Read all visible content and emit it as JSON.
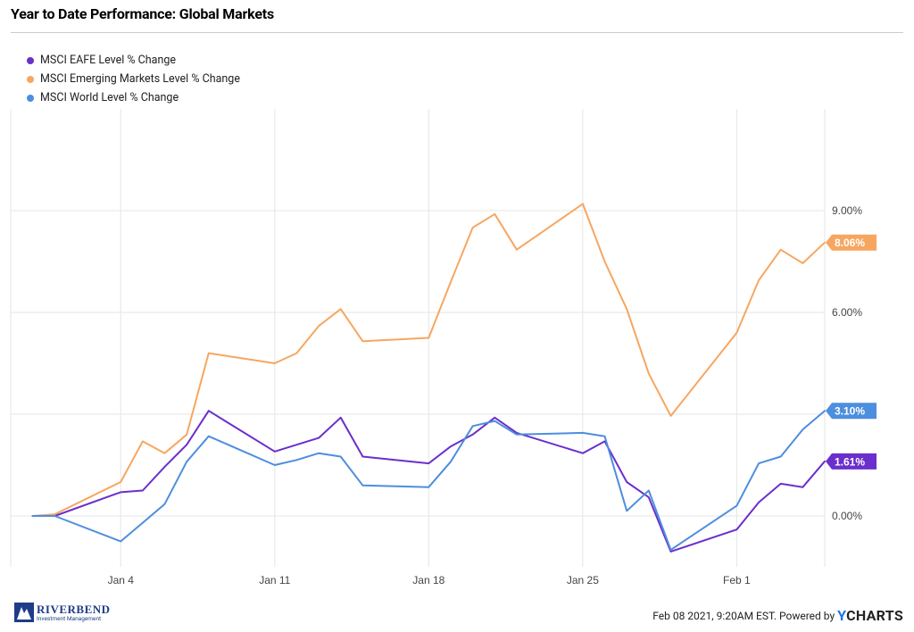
{
  "title": "Year to Date Performance: Global Markets",
  "footer": {
    "logo_name": "RIVERBEND",
    "logo_sub": "Investment Management",
    "timestamp": "Feb 08 2021, 9:20AM EST. Powered by",
    "brand_y": "Y",
    "brand_rest": "CHARTS"
  },
  "colors": {
    "eafe": "#6a2fcc",
    "em": "#f7a660",
    "world": "#4d8ede",
    "grid": "#e6e6e6",
    "axis_text": "#444444"
  },
  "chart_data": {
    "type": "line",
    "title": "Year to Date Performance: Global Markets",
    "xlabel": "",
    "ylabel": "",
    "x_ticks": [
      "Jan 4",
      "Jan 11",
      "Jan 18",
      "Jan 25",
      "Feb 1"
    ],
    "y_ticks": [
      "0.00%",
      "3.00%",
      "6.00%",
      "9.00%"
    ],
    "ylim": [
      -1.5,
      12
    ],
    "grid": true,
    "legend_position": "top-left",
    "series": [
      {
        "name": "MSCI EAFE Level % Change",
        "color_key": "eafe",
        "end_label": "1.61%",
        "values": [
          [
            "2020-12-31",
            0.0
          ],
          [
            "2021-01-01",
            0.0
          ],
          [
            "2021-01-04",
            0.7
          ],
          [
            "2021-01-05",
            0.75
          ],
          [
            "2021-01-06",
            1.45
          ],
          [
            "2021-01-07",
            2.1
          ],
          [
            "2021-01-08",
            3.1
          ],
          [
            "2021-01-11",
            1.9
          ],
          [
            "2021-01-12",
            2.1
          ],
          [
            "2021-01-13",
            2.3
          ],
          [
            "2021-01-14",
            2.9
          ],
          [
            "2021-01-15",
            1.75
          ],
          [
            "2021-01-18",
            1.55
          ],
          [
            "2021-01-19",
            2.05
          ],
          [
            "2021-01-20",
            2.4
          ],
          [
            "2021-01-21",
            2.9
          ],
          [
            "2021-01-22",
            2.45
          ],
          [
            "2021-01-25",
            1.85
          ],
          [
            "2021-01-26",
            2.2
          ],
          [
            "2021-01-27",
            1.0
          ],
          [
            "2021-01-28",
            0.55
          ],
          [
            "2021-01-29",
            -1.05
          ],
          [
            "2021-02-01",
            -0.4
          ],
          [
            "2021-02-02",
            0.4
          ],
          [
            "2021-02-03",
            0.95
          ],
          [
            "2021-02-04",
            0.85
          ],
          [
            "2021-02-05",
            1.61
          ]
        ]
      },
      {
        "name": "MSCI Emerging Markets Level % Change",
        "color_key": "em",
        "end_label": "8.06%",
        "values": [
          [
            "2020-12-31",
            0.0
          ],
          [
            "2021-01-01",
            0.05
          ],
          [
            "2021-01-04",
            1.0
          ],
          [
            "2021-01-05",
            2.2
          ],
          [
            "2021-01-06",
            1.85
          ],
          [
            "2021-01-07",
            2.4
          ],
          [
            "2021-01-08",
            4.8
          ],
          [
            "2021-01-11",
            4.5
          ],
          [
            "2021-01-12",
            4.8
          ],
          [
            "2021-01-13",
            5.6
          ],
          [
            "2021-01-14",
            6.1
          ],
          [
            "2021-01-15",
            5.15
          ],
          [
            "2021-01-18",
            5.25
          ],
          [
            "2021-01-19",
            6.9
          ],
          [
            "2021-01-20",
            8.5
          ],
          [
            "2021-01-21",
            8.9
          ],
          [
            "2021-01-22",
            7.85
          ],
          [
            "2021-01-25",
            9.2
          ],
          [
            "2021-01-26",
            7.5
          ],
          [
            "2021-01-27",
            6.1
          ],
          [
            "2021-01-28",
            4.2
          ],
          [
            "2021-01-29",
            2.95
          ],
          [
            "2021-02-01",
            5.4
          ],
          [
            "2021-02-02",
            6.95
          ],
          [
            "2021-02-03",
            7.85
          ],
          [
            "2021-02-04",
            7.45
          ],
          [
            "2021-02-05",
            8.06
          ]
        ]
      },
      {
        "name": "MSCI World Level % Change",
        "color_key": "world",
        "end_label": "3.10%",
        "values": [
          [
            "2020-12-31",
            0.0
          ],
          [
            "2021-01-01",
            0.0
          ],
          [
            "2021-01-04",
            -0.75
          ],
          [
            "2021-01-05",
            -0.2
          ],
          [
            "2021-01-06",
            0.35
          ],
          [
            "2021-01-07",
            1.6
          ],
          [
            "2021-01-08",
            2.35
          ],
          [
            "2021-01-11",
            1.5
          ],
          [
            "2021-01-12",
            1.65
          ],
          [
            "2021-01-13",
            1.85
          ],
          [
            "2021-01-14",
            1.75
          ],
          [
            "2021-01-15",
            0.9
          ],
          [
            "2021-01-18",
            0.85
          ],
          [
            "2021-01-19",
            1.6
          ],
          [
            "2021-01-20",
            2.65
          ],
          [
            "2021-01-21",
            2.8
          ],
          [
            "2021-01-22",
            2.4
          ],
          [
            "2021-01-25",
            2.45
          ],
          [
            "2021-01-26",
            2.35
          ],
          [
            "2021-01-27",
            0.15
          ],
          [
            "2021-01-28",
            0.75
          ],
          [
            "2021-01-29",
            -1.0
          ],
          [
            "2021-02-01",
            0.3
          ],
          [
            "2021-02-02",
            1.55
          ],
          [
            "2021-02-03",
            1.75
          ],
          [
            "2021-02-04",
            2.55
          ],
          [
            "2021-02-05",
            3.1
          ]
        ]
      }
    ]
  }
}
